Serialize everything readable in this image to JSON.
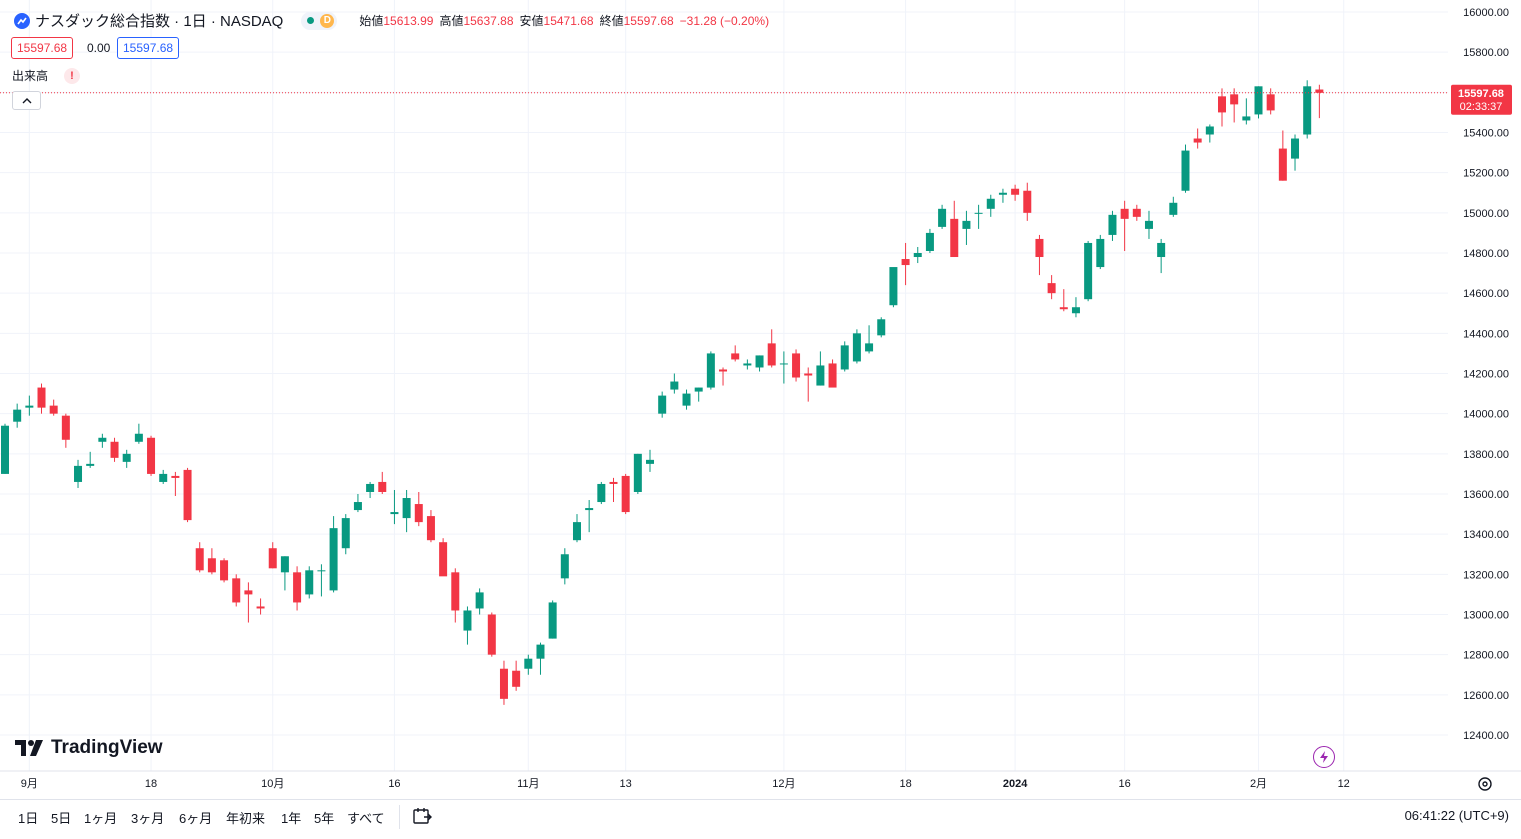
{
  "header": {
    "title": "ナスダック総合指数 · 1日 · NASDAQ",
    "status_interval": "D",
    "ohlc": [
      {
        "label": "始値",
        "value": "15613.99"
      },
      {
        "label": "高値",
        "value": "15637.88"
      },
      {
        "label": "安値",
        "value": "15471.68"
      },
      {
        "label": "終値",
        "value": "15597.68"
      },
      {
        "label": "",
        "value": "−31.28 (−0.20%)"
      }
    ],
    "sell_price": "15597.68",
    "spread": "0.00",
    "buy_price": "15597.68",
    "volume_label": "出来高",
    "warning_glyph": "!"
  },
  "brand": {
    "logo_text": "TradingView"
  },
  "last_price_label": {
    "price": "15597.68",
    "countdown": "02:33:37"
  },
  "bottom_bar": {
    "ranges": [
      "1日",
      "5日",
      "1ヶ月",
      "3ヶ月",
      "6ヶ月",
      "年初来",
      "1年",
      "5年",
      "すべて"
    ],
    "clock": "06:41:22 (UTC+9)"
  },
  "colors": {
    "up": "#089981",
    "down": "#f23645",
    "grid": "#f0f3fa",
    "accent": "#2962ff"
  },
  "chart_data": {
    "type": "candlestick",
    "title": "ナスダック総合指数 · 1日 · NASDAQ",
    "ylim": [
      12300,
      16000
    ],
    "y_ticks": [
      "16000.00",
      "15800.00",
      "15600.00",
      "15400.00",
      "15200.00",
      "15000.00",
      "14800.00",
      "14600.00",
      "14400.00",
      "14200.00",
      "14000.00",
      "13800.00",
      "13600.00",
      "13400.00",
      "13200.00",
      "13000.00",
      "12800.00",
      "12600.00",
      "12400.00"
    ],
    "x_ticks": [
      {
        "index": 2,
        "label": "9月"
      },
      {
        "index": 12,
        "label": "18"
      },
      {
        "index": 22,
        "label": "10月"
      },
      {
        "index": 32,
        "label": "16"
      },
      {
        "index": 43,
        "label": "11月"
      },
      {
        "index": 51,
        "label": "13"
      },
      {
        "index": 64,
        "label": "12月"
      },
      {
        "index": 74,
        "label": "18"
      },
      {
        "index": 83,
        "label": "2024"
      },
      {
        "index": 92,
        "label": "16"
      },
      {
        "index": 103,
        "label": "2月"
      },
      {
        "index": 110,
        "label": "12"
      }
    ],
    "last_price": 15597.68,
    "candles": [
      {
        "o": 13700,
        "h": 13950,
        "l": 13700,
        "c": 13940
      },
      {
        "o": 13960,
        "h": 14050,
        "l": 13930,
        "c": 14020
      },
      {
        "o": 14030,
        "h": 14090,
        "l": 13990,
        "c": 14040
      },
      {
        "o": 14130,
        "h": 14150,
        "l": 14000,
        "c": 14030
      },
      {
        "o": 14040,
        "h": 14070,
        "l": 13990,
        "c": 14000
      },
      {
        "o": 13990,
        "h": 14000,
        "l": 13830,
        "c": 13870
      },
      {
        "o": 13660,
        "h": 13770,
        "l": 13630,
        "c": 13740
      },
      {
        "o": 13740,
        "h": 13810,
        "l": 13730,
        "c": 13750
      },
      {
        "o": 13860,
        "h": 13900,
        "l": 13830,
        "c": 13880
      },
      {
        "o": 13860,
        "h": 13880,
        "l": 13760,
        "c": 13780
      },
      {
        "o": 13760,
        "h": 13820,
        "l": 13730,
        "c": 13800
      },
      {
        "o": 13860,
        "h": 13950,
        "l": 13850,
        "c": 13900
      },
      {
        "o": 13880,
        "h": 13890,
        "l": 13690,
        "c": 13700
      },
      {
        "o": 13660,
        "h": 13720,
        "l": 13650,
        "c": 13700
      },
      {
        "o": 13690,
        "h": 13710,
        "l": 13590,
        "c": 13680
      },
      {
        "o": 13720,
        "h": 13730,
        "l": 13460,
        "c": 13470
      },
      {
        "o": 13330,
        "h": 13360,
        "l": 13210,
        "c": 13220
      },
      {
        "o": 13280,
        "h": 13330,
        "l": 13200,
        "c": 13210
      },
      {
        "o": 13270,
        "h": 13280,
        "l": 13160,
        "c": 13170
      },
      {
        "o": 13180,
        "h": 13200,
        "l": 13040,
        "c": 13060
      },
      {
        "o": 13120,
        "h": 13160,
        "l": 12960,
        "c": 13100
      },
      {
        "o": 13040,
        "h": 13080,
        "l": 13000,
        "c": 13030
      },
      {
        "o": 13330,
        "h": 13360,
        "l": 13230,
        "c": 13230
      },
      {
        "o": 13210,
        "h": 13290,
        "l": 13120,
        "c": 13290
      },
      {
        "o": 13210,
        "h": 13240,
        "l": 13020,
        "c": 13060
      },
      {
        "o": 13100,
        "h": 13240,
        "l": 13080,
        "c": 13220
      },
      {
        "o": 13220,
        "h": 13250,
        "l": 13090,
        "c": 13220
      },
      {
        "o": 13120,
        "h": 13490,
        "l": 13110,
        "c": 13430
      },
      {
        "o": 13330,
        "h": 13500,
        "l": 13300,
        "c": 13480
      },
      {
        "o": 13520,
        "h": 13600,
        "l": 13510,
        "c": 13560
      },
      {
        "o": 13610,
        "h": 13660,
        "l": 13580,
        "c": 13650
      },
      {
        "o": 13660,
        "h": 13710,
        "l": 13600,
        "c": 13610
      },
      {
        "o": 13500,
        "h": 13620,
        "l": 13450,
        "c": 13510
      },
      {
        "o": 13480,
        "h": 13620,
        "l": 13410,
        "c": 13580
      },
      {
        "o": 13550,
        "h": 13610,
        "l": 13440,
        "c": 13460
      },
      {
        "o": 13490,
        "h": 13520,
        "l": 13360,
        "c": 13370
      },
      {
        "o": 13360,
        "h": 13380,
        "l": 13220,
        "c": 13190
      },
      {
        "o": 13210,
        "h": 13230,
        "l": 12960,
        "c": 13020
      },
      {
        "o": 12920,
        "h": 13040,
        "l": 12850,
        "c": 13020
      },
      {
        "o": 13030,
        "h": 13130,
        "l": 13000,
        "c": 13110
      },
      {
        "o": 13000,
        "h": 13010,
        "l": 12790,
        "c": 12800
      },
      {
        "o": 12730,
        "h": 12770,
        "l": 12550,
        "c": 12580
      },
      {
        "o": 12720,
        "h": 12770,
        "l": 12620,
        "c": 12640
      },
      {
        "o": 12730,
        "h": 12800,
        "l": 12700,
        "c": 12780
      },
      {
        "o": 12780,
        "h": 12860,
        "l": 12700,
        "c": 12850
      },
      {
        "o": 12880,
        "h": 13070,
        "l": 12880,
        "c": 13060
      },
      {
        "o": 13180,
        "h": 13330,
        "l": 13150,
        "c": 13300
      },
      {
        "o": 13370,
        "h": 13500,
        "l": 13360,
        "c": 13460
      },
      {
        "o": 13520,
        "h": 13570,
        "l": 13410,
        "c": 13530
      },
      {
        "o": 13560,
        "h": 13660,
        "l": 13550,
        "c": 13650
      },
      {
        "o": 13660,
        "h": 13680,
        "l": 13560,
        "c": 13650
      },
      {
        "o": 13690,
        "h": 13700,
        "l": 13500,
        "c": 13510
      },
      {
        "o": 13610,
        "h": 13800,
        "l": 13600,
        "c": 13800
      },
      {
        "o": 13750,
        "h": 13820,
        "l": 13710,
        "c": 13770
      },
      {
        "o": 14000,
        "h": 14110,
        "l": 13980,
        "c": 14090
      },
      {
        "o": 14120,
        "h": 14200,
        "l": 14100,
        "c": 14160
      },
      {
        "o": 14040,
        "h": 14120,
        "l": 14020,
        "c": 14100
      },
      {
        "o": 14110,
        "h": 14130,
        "l": 14060,
        "c": 14130
      },
      {
        "o": 14130,
        "h": 14310,
        "l": 14120,
        "c": 14300
      },
      {
        "o": 14220,
        "h": 14230,
        "l": 14140,
        "c": 14210
      },
      {
        "o": 14300,
        "h": 14340,
        "l": 14260,
        "c": 14270
      },
      {
        "o": 14240,
        "h": 14270,
        "l": 14220,
        "c": 14250
      },
      {
        "o": 14230,
        "h": 14290,
        "l": 14210,
        "c": 14290
      },
      {
        "o": 14350,
        "h": 14420,
        "l": 14230,
        "c": 14240
      },
      {
        "o": 14250,
        "h": 14310,
        "l": 14150,
        "c": 14250
      },
      {
        "o": 14300,
        "h": 14320,
        "l": 14160,
        "c": 14180
      },
      {
        "o": 14200,
        "h": 14230,
        "l": 14060,
        "c": 14190
      },
      {
        "o": 14140,
        "h": 14310,
        "l": 14140,
        "c": 14240
      },
      {
        "o": 14250,
        "h": 14270,
        "l": 14140,
        "c": 14130
      },
      {
        "o": 14220,
        "h": 14360,
        "l": 14210,
        "c": 14340
      },
      {
        "o": 14260,
        "h": 14420,
        "l": 14250,
        "c": 14400
      },
      {
        "o": 14310,
        "h": 14440,
        "l": 14300,
        "c": 14350
      },
      {
        "o": 14390,
        "h": 14480,
        "l": 14380,
        "c": 14470
      },
      {
        "o": 14540,
        "h": 14700,
        "l": 14530,
        "c": 14730
      },
      {
        "o": 14770,
        "h": 14850,
        "l": 14640,
        "c": 14740
      },
      {
        "o": 14780,
        "h": 14830,
        "l": 14750,
        "c": 14800
      },
      {
        "o": 14810,
        "h": 14920,
        "l": 14800,
        "c": 14900
      },
      {
        "o": 14930,
        "h": 15040,
        "l": 14920,
        "c": 15020
      },
      {
        "o": 14970,
        "h": 15060,
        "l": 14780,
        "c": 14780
      },
      {
        "o": 14920,
        "h": 15010,
        "l": 14840,
        "c": 14960
      },
      {
        "o": 15000,
        "h": 15040,
        "l": 14920,
        "c": 15000
      },
      {
        "o": 15020,
        "h": 15090,
        "l": 14980,
        "c": 15070
      },
      {
        "o": 15090,
        "h": 15120,
        "l": 15050,
        "c": 15100
      },
      {
        "o": 15120,
        "h": 15140,
        "l": 15060,
        "c": 15090
      },
      {
        "o": 15110,
        "h": 15150,
        "l": 14960,
        "c": 15000
      },
      {
        "o": 14870,
        "h": 14890,
        "l": 14690,
        "c": 14780
      },
      {
        "o": 14650,
        "h": 14690,
        "l": 14570,
        "c": 14600
      },
      {
        "o": 14530,
        "h": 14620,
        "l": 14510,
        "c": 14520
      },
      {
        "o": 14500,
        "h": 14580,
        "l": 14480,
        "c": 14530
      },
      {
        "o": 14570,
        "h": 14860,
        "l": 14560,
        "c": 14850
      },
      {
        "o": 14730,
        "h": 14890,
        "l": 14720,
        "c": 14870
      },
      {
        "o": 14890,
        "h": 15010,
        "l": 14860,
        "c": 14990
      },
      {
        "o": 15020,
        "h": 15060,
        "l": 14810,
        "c": 14970
      },
      {
        "o": 15020,
        "h": 15040,
        "l": 14960,
        "c": 14980
      },
      {
        "o": 14920,
        "h": 15010,
        "l": 14870,
        "c": 14960
      },
      {
        "o": 14780,
        "h": 14870,
        "l": 14700,
        "c": 14850
      },
      {
        "o": 14990,
        "h": 15080,
        "l": 14980,
        "c": 15050
      },
      {
        "o": 15110,
        "h": 15340,
        "l": 15100,
        "c": 15310
      },
      {
        "o": 15370,
        "h": 15420,
        "l": 15320,
        "c": 15350
      },
      {
        "o": 15390,
        "h": 15440,
        "l": 15350,
        "c": 15430
      },
      {
        "o": 15580,
        "h": 15620,
        "l": 15430,
        "c": 15500
      },
      {
        "o": 15590,
        "h": 15620,
        "l": 15450,
        "c": 15540
      },
      {
        "o": 15460,
        "h": 15570,
        "l": 15440,
        "c": 15480
      },
      {
        "o": 15490,
        "h": 15630,
        "l": 15470,
        "c": 15630
      },
      {
        "o": 15590,
        "h": 15620,
        "l": 15490,
        "c": 15510
      },
      {
        "o": 15320,
        "h": 15410,
        "l": 15160,
        "c": 15160
      },
      {
        "o": 15270,
        "h": 15390,
        "l": 15210,
        "c": 15370
      },
      {
        "o": 15390,
        "h": 15660,
        "l": 15370,
        "c": 15630
      },
      {
        "o": 15613.99,
        "h": 15637.88,
        "l": 15471.68,
        "c": 15597.68
      }
    ]
  }
}
